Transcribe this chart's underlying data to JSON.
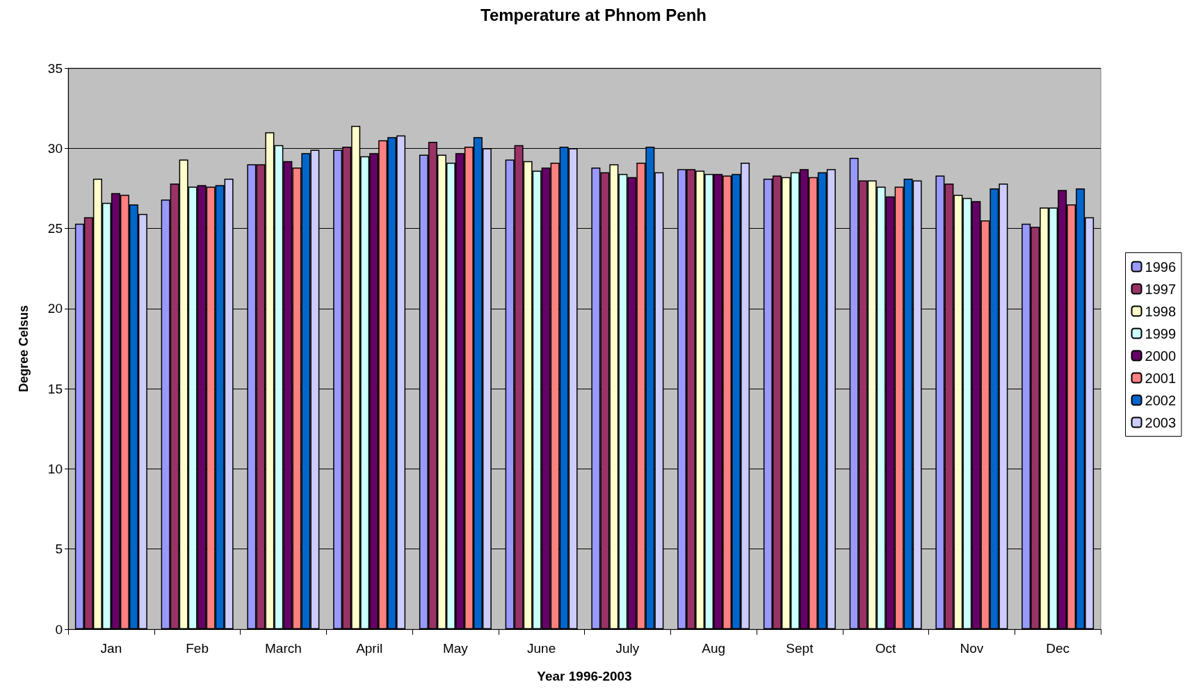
{
  "chart_data": {
    "type": "bar",
    "title": "Temperature at Phnom Penh",
    "xlabel": "Year 1996-2003",
    "ylabel": "Degree Celsus",
    "categories": [
      "Jan",
      "Feb",
      "March",
      "April",
      "May",
      "June",
      "July",
      "Aug",
      "Sept",
      "Oct",
      "Nov",
      "Dec"
    ],
    "series": [
      {
        "name": "1996",
        "color": "#9999ff",
        "values": [
          25.3,
          26.8,
          29.0,
          29.9,
          29.6,
          29.3,
          28.8,
          28.7,
          28.1,
          29.4,
          28.3,
          25.3
        ]
      },
      {
        "name": "1997",
        "color": "#993366",
        "values": [
          25.7,
          27.8,
          29.0,
          30.1,
          30.4,
          30.2,
          28.5,
          28.7,
          28.3,
          28.0,
          27.8,
          25.1
        ]
      },
      {
        "name": "1998",
        "color": "#ffffcc",
        "values": [
          28.1,
          29.3,
          31.0,
          31.4,
          29.6,
          29.2,
          29.0,
          28.6,
          28.2,
          28.0,
          27.1,
          26.3
        ]
      },
      {
        "name": "1999",
        "color": "#ccffff",
        "values": [
          26.6,
          27.6,
          30.2,
          29.5,
          29.1,
          28.6,
          28.4,
          28.4,
          28.5,
          27.6,
          26.9,
          26.3
        ]
      },
      {
        "name": "2000",
        "color": "#660066",
        "values": [
          27.2,
          27.7,
          29.2,
          29.7,
          29.7,
          28.8,
          28.2,
          28.4,
          28.7,
          27.0,
          26.7,
          27.4
        ]
      },
      {
        "name": "2001",
        "color": "#ff8080",
        "values": [
          27.1,
          27.6,
          28.8,
          30.5,
          30.1,
          29.1,
          29.1,
          28.3,
          28.2,
          27.6,
          25.5,
          26.5
        ]
      },
      {
        "name": "2002",
        "color": "#0066cc",
        "values": [
          26.5,
          27.7,
          29.7,
          30.7,
          30.7,
          30.1,
          30.1,
          28.4,
          28.5,
          28.1,
          27.5,
          27.5
        ]
      },
      {
        "name": "2003",
        "color": "#ccccff",
        "values": [
          25.9,
          28.1,
          29.9,
          30.8,
          30.0,
          30.0,
          28.5,
          29.1,
          28.7,
          28.0,
          27.8,
          25.7
        ]
      }
    ],
    "ylim": [
      0,
      35
    ],
    "yticks": [
      0,
      5,
      10,
      15,
      20,
      25,
      30,
      35
    ],
    "grid": "y",
    "legend": "right"
  }
}
